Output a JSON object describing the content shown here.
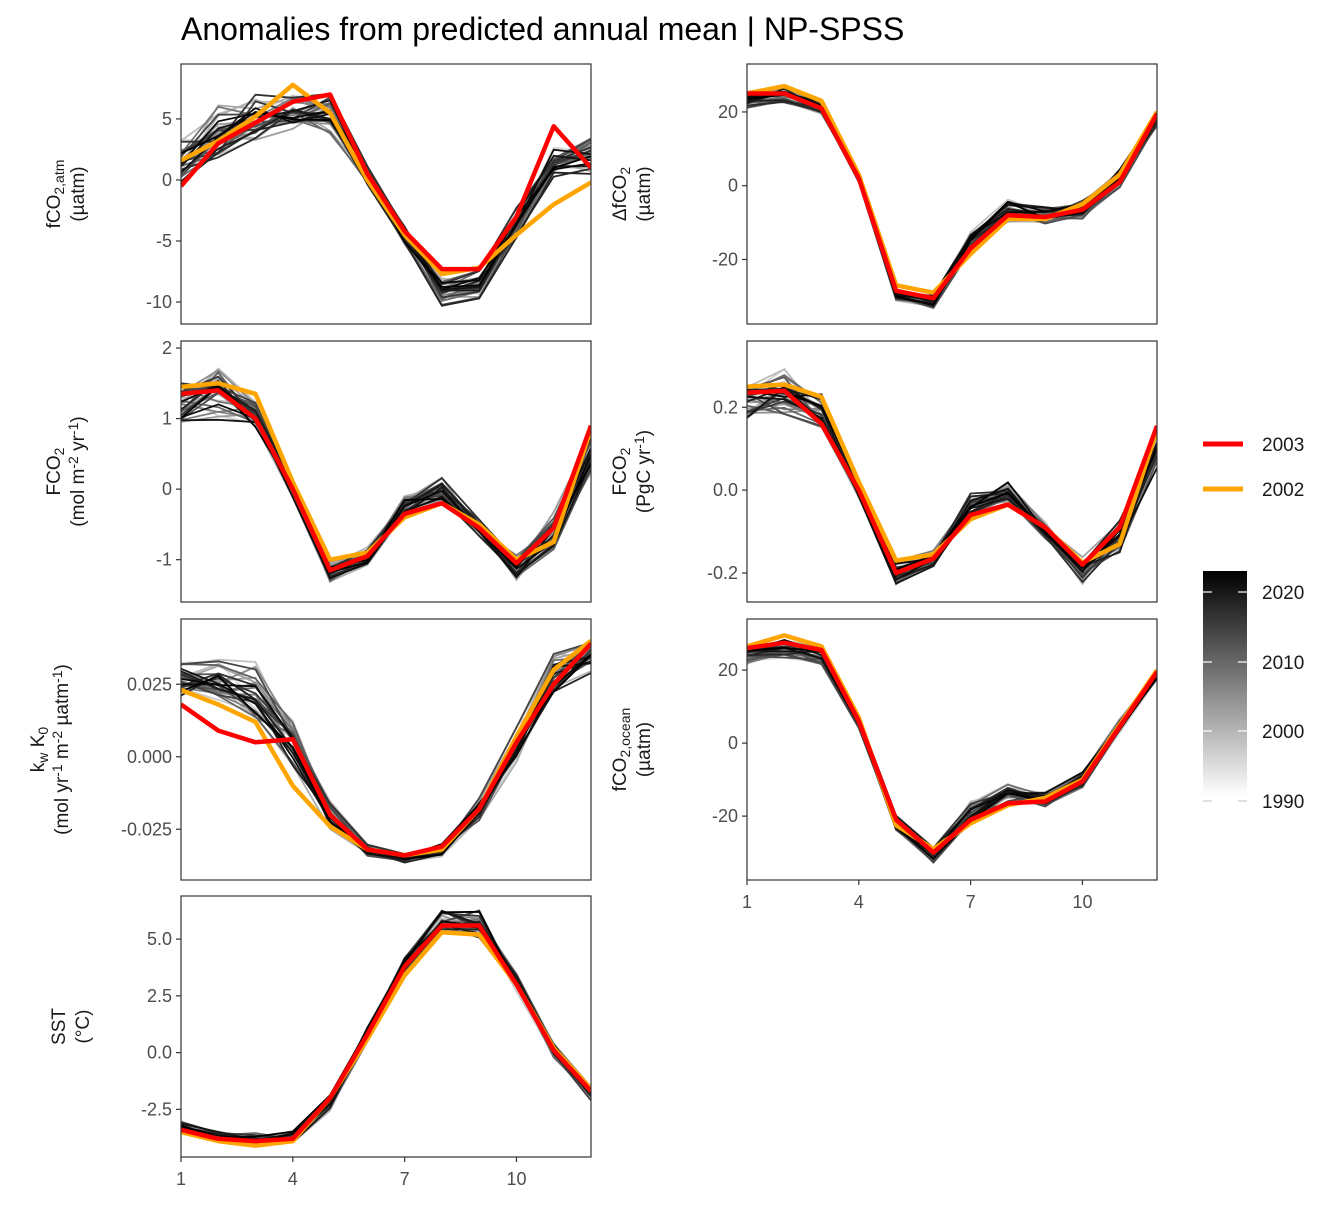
{
  "title": "Anomalies from predicted annual mean | NP-SPSS",
  "legend": {
    "highlight": [
      {
        "label": "2003",
        "color": "#ff0000"
      },
      {
        "label": "2002",
        "color": "#ffa500"
      }
    ],
    "colorbar": {
      "ticks": [
        "2020",
        "2010",
        "2000",
        "1990"
      ],
      "range": [
        1990,
        2023
      ],
      "low_color": "#ffffff",
      "high_color": "#000000"
    }
  },
  "chart_data": [
    {
      "type": "line",
      "panel": "fco2_atm",
      "ylabel_lines": [
        "fCO2,atm",
        "(µatm)"
      ],
      "x": [
        1,
        2,
        3,
        4,
        5,
        6,
        7,
        8,
        9,
        10,
        11,
        12
      ],
      "xticks": [
        1,
        4,
        7,
        10
      ],
      "xlim": [
        1,
        12
      ],
      "ylim": [
        -11.8,
        9.5
      ],
      "yticks": [
        5,
        0,
        -5,
        -10
      ],
      "ytick_labels": [
        "5",
        "0",
        "-5",
        "-10"
      ],
      "series": [
        {
          "name": "2003",
          "color": "#ff0000",
          "values": [
            -0.5,
            3.0,
            4.7,
            6.4,
            7.0,
            0.5,
            -4.2,
            -7.3,
            -7.3,
            -3.0,
            4.4,
            1.0
          ]
        },
        {
          "name": "2002",
          "color": "#ffa500",
          "values": [
            1.6,
            3.2,
            5.2,
            7.8,
            5.5,
            0.0,
            -4.5,
            -7.7,
            -7.2,
            -4.5,
            -2.0,
            -0.2
          ]
        }
      ],
      "envelope": {
        "mid": [
          1.5,
          3.5,
          5.0,
          5.5,
          5.5,
          0.5,
          -4.5,
          -9.0,
          -8.5,
          -3.5,
          1.5,
          2.0
        ],
        "spread": [
          2.5,
          3.0,
          2.5,
          2.0,
          2.0,
          1.0,
          1.0,
          1.5,
          1.5,
          1.5,
          1.5,
          1.8
        ]
      }
    },
    {
      "type": "line",
      "panel": "delta_fco2",
      "ylabel_lines": [
        "ΔfCO2",
        "(µatm)"
      ],
      "x": [
        1,
        2,
        3,
        4,
        5,
        6,
        7,
        8,
        9,
        10,
        11,
        12
      ],
      "xticks": [
        1,
        4,
        7,
        10
      ],
      "xlim": [
        1,
        12
      ],
      "ylim": [
        -37.5,
        33
      ],
      "yticks": [
        20,
        0,
        -20
      ],
      "ytick_labels": [
        "20",
        "0",
        "-20"
      ],
      "series": [
        {
          "name": "2003",
          "color": "#ff0000",
          "values": [
            25.0,
            25.0,
            21.0,
            2.0,
            -28.5,
            -30.5,
            -17.0,
            -8.0,
            -8.5,
            -6.5,
            1.0,
            19.5
          ]
        },
        {
          "name": "2002",
          "color": "#ffa500",
          "values": [
            25.0,
            27.0,
            23.0,
            3.0,
            -27.0,
            -29.0,
            -18.5,
            -9.0,
            -9.0,
            -5.0,
            3.0,
            20.0
          ]
        }
      ],
      "envelope": {
        "mid": [
          23.0,
          25.0,
          21.0,
          2.0,
          -29.5,
          -31.5,
          -15.5,
          -7.0,
          -8.0,
          -6.5,
          2.0,
          18.0
        ],
        "spread": [
          3.0,
          3.0,
          2.5,
          1.5,
          2.5,
          2.5,
          3.5,
          4.0,
          3.0,
          3.0,
          3.0,
          2.5
        ]
      }
    },
    {
      "type": "line",
      "panel": "fco2_flux",
      "ylabel_lines": [
        "FCO2",
        "(mol m-2 yr-1)"
      ],
      "x": [
        1,
        2,
        3,
        4,
        5,
        6,
        7,
        8,
        9,
        10,
        11,
        12
      ],
      "xticks": [
        1,
        4,
        7,
        10
      ],
      "xlim": [
        1,
        12
      ],
      "ylim": [
        -1.6,
        2.1
      ],
      "yticks": [
        2,
        1,
        0,
        -1
      ],
      "ytick_labels": [
        "2",
        "1",
        "0",
        "-1"
      ],
      "series": [
        {
          "name": "2003",
          "color": "#ff0000",
          "values": [
            1.35,
            1.4,
            1.0,
            0.0,
            -1.15,
            -0.95,
            -0.35,
            -0.2,
            -0.55,
            -1.05,
            -0.55,
            0.9
          ]
        },
        {
          "name": "2002",
          "color": "#ffa500",
          "values": [
            1.45,
            1.5,
            1.35,
            0.1,
            -1.0,
            -0.9,
            -0.4,
            -0.2,
            -0.5,
            -1.0,
            -0.75,
            0.85
          ]
        }
      ],
      "envelope": {
        "mid": [
          1.25,
          1.4,
          1.1,
          0.05,
          -1.15,
          -0.95,
          -0.2,
          0.0,
          -0.55,
          -1.1,
          -0.6,
          0.55
        ],
        "spread": [
          0.35,
          0.5,
          0.3,
          0.2,
          0.2,
          0.15,
          0.2,
          0.2,
          0.15,
          0.25,
          0.35,
          0.35
        ]
      }
    },
    {
      "type": "line",
      "panel": "fco2_pgc",
      "ylabel_lines": [
        "FCO2",
        "(PgC yr-1)"
      ],
      "x": [
        1,
        2,
        3,
        4,
        5,
        6,
        7,
        8,
        9,
        10,
        11,
        12
      ],
      "xticks": [
        1,
        4,
        7,
        10
      ],
      "xlim": [
        1,
        12
      ],
      "ylim": [
        -0.27,
        0.36
      ],
      "yticks": [
        0.2,
        0.0,
        -0.2
      ],
      "ytick_labels": [
        "0.2",
        "0.0",
        "-0.2"
      ],
      "series": [
        {
          "name": "2003",
          "color": "#ff0000",
          "values": [
            0.235,
            0.24,
            0.16,
            0.0,
            -0.2,
            -0.165,
            -0.06,
            -0.035,
            -0.09,
            -0.18,
            -0.09,
            0.155
          ]
        },
        {
          "name": "2002",
          "color": "#ffa500",
          "values": [
            0.25,
            0.255,
            0.225,
            0.02,
            -0.17,
            -0.155,
            -0.07,
            -0.035,
            -0.09,
            -0.175,
            -0.13,
            0.145
          ]
        }
      ],
      "envelope": {
        "mid": [
          0.22,
          0.24,
          0.19,
          0.01,
          -0.2,
          -0.165,
          -0.035,
          0.0,
          -0.095,
          -0.19,
          -0.105,
          0.095
        ],
        "spread": [
          0.06,
          0.085,
          0.05,
          0.035,
          0.035,
          0.025,
          0.035,
          0.035,
          0.025,
          0.045,
          0.06,
          0.06
        ]
      }
    },
    {
      "type": "line",
      "panel": "kw_k0",
      "ylabel_lines": [
        "kw K0",
        "(mol yr-1 m-2 µatm-1)"
      ],
      "x": [
        1,
        2,
        3,
        4,
        5,
        6,
        7,
        8,
        9,
        10,
        11,
        12
      ],
      "xticks": [
        1,
        4,
        7,
        10
      ],
      "xlim": [
        1,
        12
      ],
      "ylim": [
        -0.0425,
        0.0475
      ],
      "yticks": [
        0.025,
        0.0,
        -0.025
      ],
      "ytick_labels": [
        "0.025",
        "0.000",
        "-0.025"
      ],
      "series": [
        {
          "name": "2003",
          "color": "#ff0000",
          "values": [
            0.018,
            0.009,
            0.005,
            0.006,
            -0.02,
            -0.032,
            -0.034,
            -0.031,
            -0.018,
            0.005,
            0.025,
            0.039
          ]
        },
        {
          "name": "2002",
          "color": "#ffa500",
          "values": [
            0.023,
            0.018,
            0.012,
            -0.01,
            -0.024,
            -0.032,
            -0.034,
            -0.032,
            -0.018,
            0.007,
            0.03,
            0.04
          ]
        }
      ],
      "envelope": {
        "mid": [
          0.027,
          0.026,
          0.022,
          0.005,
          -0.02,
          -0.032,
          -0.035,
          -0.032,
          -0.018,
          0.005,
          0.028,
          0.035
        ],
        "spread": [
          0.008,
          0.01,
          0.012,
          0.01,
          0.006,
          0.003,
          0.003,
          0.004,
          0.005,
          0.008,
          0.01,
          0.008
        ]
      }
    },
    {
      "type": "line",
      "panel": "fco2_ocean",
      "ylabel_lines": [
        "fCO2,ocean",
        "(µatm)"
      ],
      "x": [
        1,
        2,
        3,
        4,
        5,
        6,
        7,
        8,
        9,
        10,
        11,
        12
      ],
      "xticks": [
        1,
        4,
        7,
        10
      ],
      "xlim": [
        1,
        12
      ],
      "ylim": [
        -37.5,
        34
      ],
      "yticks": [
        20,
        0,
        -20
      ],
      "ytick_labels": [
        "20",
        "0",
        "-20"
      ],
      "series": [
        {
          "name": "2003",
          "color": "#ff0000",
          "values": [
            26.0,
            27.5,
            25.5,
            6.0,
            -21.0,
            -30.0,
            -21.0,
            -16.5,
            -16.0,
            -10.5,
            4.5,
            19.5
          ]
        },
        {
          "name": "2002",
          "color": "#ffa500",
          "values": [
            26.5,
            29.5,
            26.5,
            7.0,
            -22.5,
            -29.0,
            -22.0,
            -17.0,
            -15.0,
            -10.0,
            5.0,
            20.0
          ]
        }
      ],
      "envelope": {
        "mid": [
          24.0,
          26.0,
          24.0,
          6.0,
          -22.0,
          -31.0,
          -19.0,
          -14.0,
          -15.0,
          -10.0,
          5.0,
          19.0
        ],
        "spread": [
          3.0,
          3.5,
          3.0,
          2.5,
          3.0,
          3.0,
          4.5,
          4.5,
          3.0,
          3.0,
          2.5,
          2.5
        ]
      }
    },
    {
      "type": "line",
      "panel": "sst",
      "ylabel_lines": [
        "SST",
        "(°C)"
      ],
      "x": [
        1,
        2,
        3,
        4,
        5,
        6,
        7,
        8,
        9,
        10,
        11,
        12
      ],
      "xticks": [
        1,
        4,
        7,
        10
      ],
      "xlim": [
        1,
        12
      ],
      "ylim": [
        -4.6,
        6.9
      ],
      "yticks": [
        5.0,
        2.5,
        0.0,
        -2.5
      ],
      "ytick_labels": [
        "5.0",
        "2.5",
        "0.0",
        "-2.5"
      ],
      "series": [
        {
          "name": "2003",
          "color": "#ff0000",
          "values": [
            -3.4,
            -3.8,
            -3.9,
            -3.8,
            -2.0,
            0.8,
            3.8,
            5.6,
            5.6,
            3.0,
            0.1,
            -1.7
          ]
        },
        {
          "name": "2002",
          "color": "#ffa500",
          "values": [
            -3.5,
            -3.9,
            -4.1,
            -3.9,
            -2.0,
            0.6,
            3.4,
            5.3,
            5.2,
            3.0,
            0.2,
            -1.6
          ]
        }
      ],
      "envelope": {
        "mid": [
          -3.3,
          -3.7,
          -3.8,
          -3.7,
          -2.2,
          0.8,
          3.9,
          5.8,
          5.7,
          3.1,
          0.1,
          -1.8
        ],
        "spread": [
          0.35,
          0.3,
          0.35,
          0.35,
          0.4,
          0.45,
          0.4,
          0.7,
          0.8,
          0.5,
          0.4,
          0.35
        ]
      }
    }
  ]
}
